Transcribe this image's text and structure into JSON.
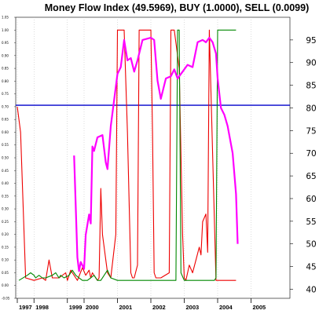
{
  "chart_data": {
    "type": "line",
    "title": "Money Flow Index (49.5969), BUY (1.0000), SELL (0.0099)",
    "x_axis": {
      "min": 1997.0,
      "max": 2005.0,
      "ticks": [
        {
          "value": 1997.0,
          "label": "1997"
        },
        {
          "value": 1997.5,
          "label": "1998"
        },
        {
          "value": 1998.5,
          "label": "1999"
        },
        {
          "value": 1999.0,
          "label": "2000"
        },
        {
          "value": 2000.0,
          "label": "2001"
        },
        {
          "value": 2001.0,
          "label": "2002"
        },
        {
          "value": 2002.0,
          "label": "2003"
        },
        {
          "value": 2003.0,
          "label": "2004"
        },
        {
          "value": 2004.0,
          "label": "2005"
        }
      ]
    },
    "left_axis": {
      "min": -0.05,
      "max": 1.05,
      "ticks": [
        "-0.05",
        "0.00",
        "0.05",
        "0.10",
        "0.15",
        "0.20",
        "0.25",
        "0.30",
        "0.35",
        "0.40",
        "0.45",
        "0.50",
        "0.55",
        "0.60",
        "0.65",
        "0.70",
        "0.75",
        "0.80",
        "0.85",
        "0.90",
        "0.95",
        "1.00",
        "1.05"
      ]
    },
    "right_axis": {
      "min": 38,
      "max": 100,
      "ticks": [
        40,
        45,
        50,
        55,
        60,
        65,
        70,
        75,
        80,
        85,
        90,
        95
      ]
    },
    "reference_line": {
      "axis": "right",
      "value": 80.6,
      "color": "#0000cc"
    },
    "series": [
      {
        "axis": "right",
        "color": "#ff00ff",
        "points": [
          [
            1998.7,
            69.5
          ],
          [
            1998.8,
            47
          ],
          [
            1998.85,
            44
          ],
          [
            1998.9,
            46
          ],
          [
            1999.0,
            44.5
          ],
          [
            1999.05,
            52
          ],
          [
            1999.15,
            56.5
          ],
          [
            1999.2,
            54.5
          ],
          [
            1999.25,
            71.5
          ],
          [
            1999.3,
            70.5
          ],
          [
            1999.4,
            73.5
          ],
          [
            1999.55,
            74
          ],
          [
            1999.65,
            68
          ],
          [
            1999.7,
            66.5
          ],
          [
            1999.8,
            76
          ],
          [
            2000.0,
            87.5
          ],
          [
            2000.1,
            89
          ],
          [
            2000.2,
            95
          ],
          [
            2000.3,
            90.5
          ],
          [
            2000.4,
            91
          ],
          [
            2000.5,
            88
          ],
          [
            2000.6,
            90.5
          ],
          [
            2000.75,
            95
          ],
          [
            2001.0,
            95.5
          ],
          [
            2001.1,
            95
          ],
          [
            2001.2,
            86
          ],
          [
            2001.3,
            82
          ],
          [
            2001.45,
            86.5
          ],
          [
            2001.6,
            87
          ],
          [
            2001.7,
            88.5
          ],
          [
            2001.8,
            86.5
          ],
          [
            2001.95,
            88
          ],
          [
            2002.1,
            89.5
          ],
          [
            2002.25,
            89
          ],
          [
            2002.4,
            94.5
          ],
          [
            2002.55,
            95
          ],
          [
            2002.65,
            94.5
          ],
          [
            2002.75,
            95.5
          ],
          [
            2002.85,
            94.5
          ],
          [
            2002.95,
            92
          ],
          [
            2003.0,
            86.5
          ],
          [
            2003.1,
            80
          ],
          [
            2003.2,
            78.5
          ],
          [
            2003.3,
            76
          ],
          [
            2003.45,
            70
          ],
          [
            2003.55,
            61
          ],
          [
            2003.6,
            50
          ]
        ]
      },
      {
        "axis": "left",
        "color": "#ee0000",
        "points": [
          [
            1997.0,
            0.7
          ],
          [
            1997.1,
            0.6
          ],
          [
            1997.25,
            0.03
          ],
          [
            1997.5,
            0.02
          ],
          [
            1997.75,
            0.03
          ],
          [
            1997.85,
            0.02
          ],
          [
            1997.95,
            0.1
          ],
          [
            1998.05,
            0.03
          ],
          [
            1998.25,
            0.03
          ],
          [
            1998.45,
            0.05
          ],
          [
            1998.5,
            0.02
          ],
          [
            1998.6,
            0.06
          ],
          [
            1998.75,
            0.03
          ],
          [
            1998.8,
            0.02
          ],
          [
            1998.95,
            0.07
          ],
          [
            1999.05,
            0.04
          ],
          [
            1999.15,
            0.06
          ],
          [
            1999.2,
            0.03
          ],
          [
            1999.25,
            0.05
          ],
          [
            1999.4,
            0.02
          ],
          [
            1999.45,
            0.03
          ],
          [
            1999.5,
            0.38
          ],
          [
            1999.55,
            0.2
          ],
          [
            1999.7,
            0.05
          ],
          [
            1999.8,
            0.03
          ],
          [
            1999.95,
            0.2
          ],
          [
            2000.0,
            1.0
          ],
          [
            2000.2,
            1.0
          ],
          [
            2000.3,
            0.6
          ],
          [
            2000.4,
            0.05
          ],
          [
            2000.45,
            0.03
          ],
          [
            2000.5,
            0.03
          ],
          [
            2000.6,
            0.08
          ],
          [
            2000.65,
            1.0
          ],
          [
            2001.0,
            1.0
          ],
          [
            2001.05,
            0.6
          ],
          [
            2001.1,
            0.05
          ],
          [
            2001.15,
            0.03
          ],
          [
            2001.3,
            0.03
          ],
          [
            2001.55,
            0.05
          ],
          [
            2001.6,
            1.0
          ],
          [
            2001.7,
            1.0
          ],
          [
            2001.85,
            0.85
          ],
          [
            2001.95,
            0.2
          ],
          [
            2002.0,
            0.03
          ],
          [
            2002.05,
            0.02
          ],
          [
            2002.15,
            0.08
          ],
          [
            2002.25,
            0.05
          ],
          [
            2002.35,
            0.1
          ],
          [
            2002.45,
            0.15
          ],
          [
            2002.5,
            0.12
          ],
          [
            2002.55,
            0.25
          ],
          [
            2002.65,
            0.28
          ],
          [
            2002.7,
            0.13
          ],
          [
            2002.75,
            1.0
          ],
          [
            2002.95,
            0.02
          ],
          [
            2003.0,
            0.02
          ],
          [
            2003.45,
            0.02
          ],
          [
            2003.55,
            0.02
          ]
        ]
      },
      {
        "axis": "left",
        "color": "#008800",
        "points": [
          [
            1997.05,
            0.02
          ],
          [
            1997.3,
            0.04
          ],
          [
            1997.4,
            0.05
          ],
          [
            1997.5,
            0.04
          ],
          [
            1997.55,
            0.03
          ],
          [
            1997.65,
            0.04
          ],
          [
            1997.75,
            0.03
          ],
          [
            1997.85,
            0.03
          ],
          [
            1998.05,
            0.04
          ],
          [
            1998.15,
            0.05
          ],
          [
            1998.25,
            0.03
          ],
          [
            1998.3,
            0.04
          ],
          [
            1998.4,
            0.03
          ],
          [
            1998.55,
            0.04
          ],
          [
            1998.65,
            0.06
          ],
          [
            1998.75,
            0.04
          ],
          [
            1998.85,
            0.03
          ],
          [
            1998.95,
            0.02
          ],
          [
            1999.0,
            0.02
          ],
          [
            1999.1,
            0.02
          ],
          [
            1999.2,
            0.03
          ],
          [
            1999.3,
            0.04
          ],
          [
            1999.4,
            0.02
          ],
          [
            1999.5,
            0.02
          ],
          [
            1999.7,
            0.06
          ],
          [
            1999.8,
            0.03
          ],
          [
            2000.0,
            0.02
          ],
          [
            2001.0,
            0.02
          ],
          [
            2001.05,
            0.02
          ],
          [
            2001.6,
            0.02
          ],
          [
            2001.75,
            0.02
          ],
          [
            2001.8,
            1.0
          ],
          [
            2001.85,
            1.0
          ],
          [
            2001.9,
            0.05
          ],
          [
            2002.0,
            0.02
          ],
          [
            2002.5,
            0.02
          ],
          [
            2002.9,
            0.02
          ],
          [
            2002.95,
            0.03
          ],
          [
            2003.0,
            1.0
          ],
          [
            2003.55,
            1.0
          ]
        ]
      }
    ]
  }
}
